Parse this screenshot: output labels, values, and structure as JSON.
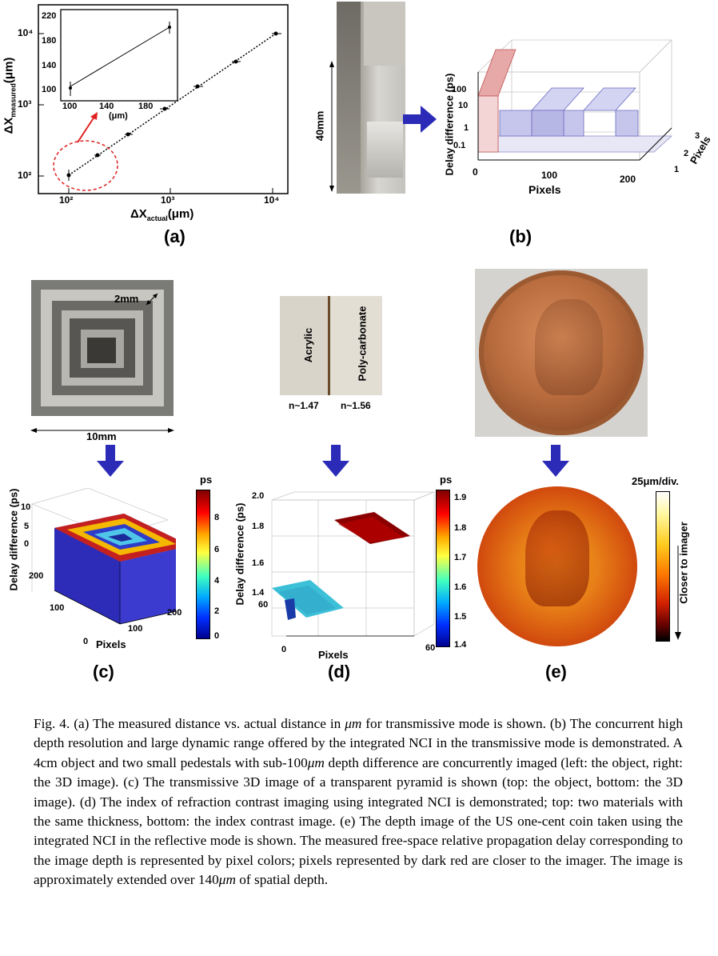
{
  "panels": {
    "a": {
      "label": "(a)",
      "xlabel_main": "ΔX",
      "xlabel_sub": "actual",
      "xlabel_unit": "(μm)",
      "ylabel_main": "ΔX",
      "ylabel_sub": "measured",
      "ylabel_unit": "(μm)",
      "xticks": [
        "10²",
        "10³",
        "10⁴"
      ],
      "yticks": [
        "10⁴",
        "10³",
        "10²"
      ],
      "inset": {
        "xticks": [
          "100",
          "140",
          "180"
        ],
        "yticks": [
          "220",
          "180",
          "140",
          "100"
        ],
        "xlabel": "(μm)"
      }
    },
    "b": {
      "label": "(b)",
      "photo_label": "40mm",
      "zlabel": "Delay difference (ps)",
      "zticks": [
        "100",
        "10",
        "1",
        "0.1"
      ],
      "xlabel": "Pixels",
      "xticks": [
        "0",
        "100",
        "200"
      ],
      "ylabel": "Pixels",
      "yticks": [
        "1",
        "2",
        "3"
      ]
    },
    "c": {
      "label": "(c)",
      "dim_2mm": "2mm",
      "dim_10mm": "10mm",
      "zlabel": "Delay difference (ps)",
      "zticks": [
        "10",
        "5",
        "0"
      ],
      "yticks": [
        "200",
        "100",
        "0"
      ],
      "xticks": [
        "100",
        "200"
      ],
      "xlabel": "Pixels",
      "colorbar_title": "ps",
      "colorbar_ticks": [
        "8",
        "6",
        "4",
        "2",
        "0"
      ]
    },
    "d": {
      "label": "(d)",
      "material_left": "Acrylic",
      "material_right": "Poly-carbonate",
      "n_left": "n~1.47",
      "n_right": "n~1.56",
      "zlabel": "Delay difference (ps)",
      "zticks": [
        "2.0",
        "1.8",
        "1.6",
        "1.4"
      ],
      "ytick": "60",
      "xticks": [
        "0",
        "60"
      ],
      "xlabel": "Pixels",
      "colorbar_title": "ps",
      "colorbar_ticks": [
        "1.9",
        "1.8",
        "1.7",
        "1.6",
        "1.5",
        "1.4"
      ]
    },
    "e": {
      "label": "(e)",
      "colorbar_title": "25μm/div.",
      "colorbar_text": "Closer to imager"
    }
  },
  "caption": {
    "p1": "Fig. 4. (a) The measured distance vs. actual distance in ",
    "p1_em": "μm",
    "p2": " for transmissive mode is shown. (b) The concurrent high depth resolution and large dynamic range offered by the integrated NCI in the transmissive mode is demonstrated. A 4cm object and two small pedestals with sub-100",
    "p2_em": "μm",
    "p3": " depth difference are concurrently imaged (left: the object, right: the 3D image). (c) The transmissive 3D image of a transparent pyramid is shown (top: the object, bottom: the 3D image). (d) The index of refraction contrast imaging using integrated NCI is demonstrated; top: two materials with the same thickness, bottom: the index contrast image. (e) The depth image of the US one-cent coin taken using the integrated NCI in the reflective mode is shown. The measured free-space relative propagation delay corresponding to the image depth is represented by pixel colors; pixels represented by dark red are closer to the imager. The image is approximately extended over 140",
    "p3_em": "μm",
    "p4": " of spatial depth."
  },
  "colors": {
    "arrow": "#2b2bb8",
    "annotation_red": "#e02020",
    "coin": "#b06a3c"
  }
}
